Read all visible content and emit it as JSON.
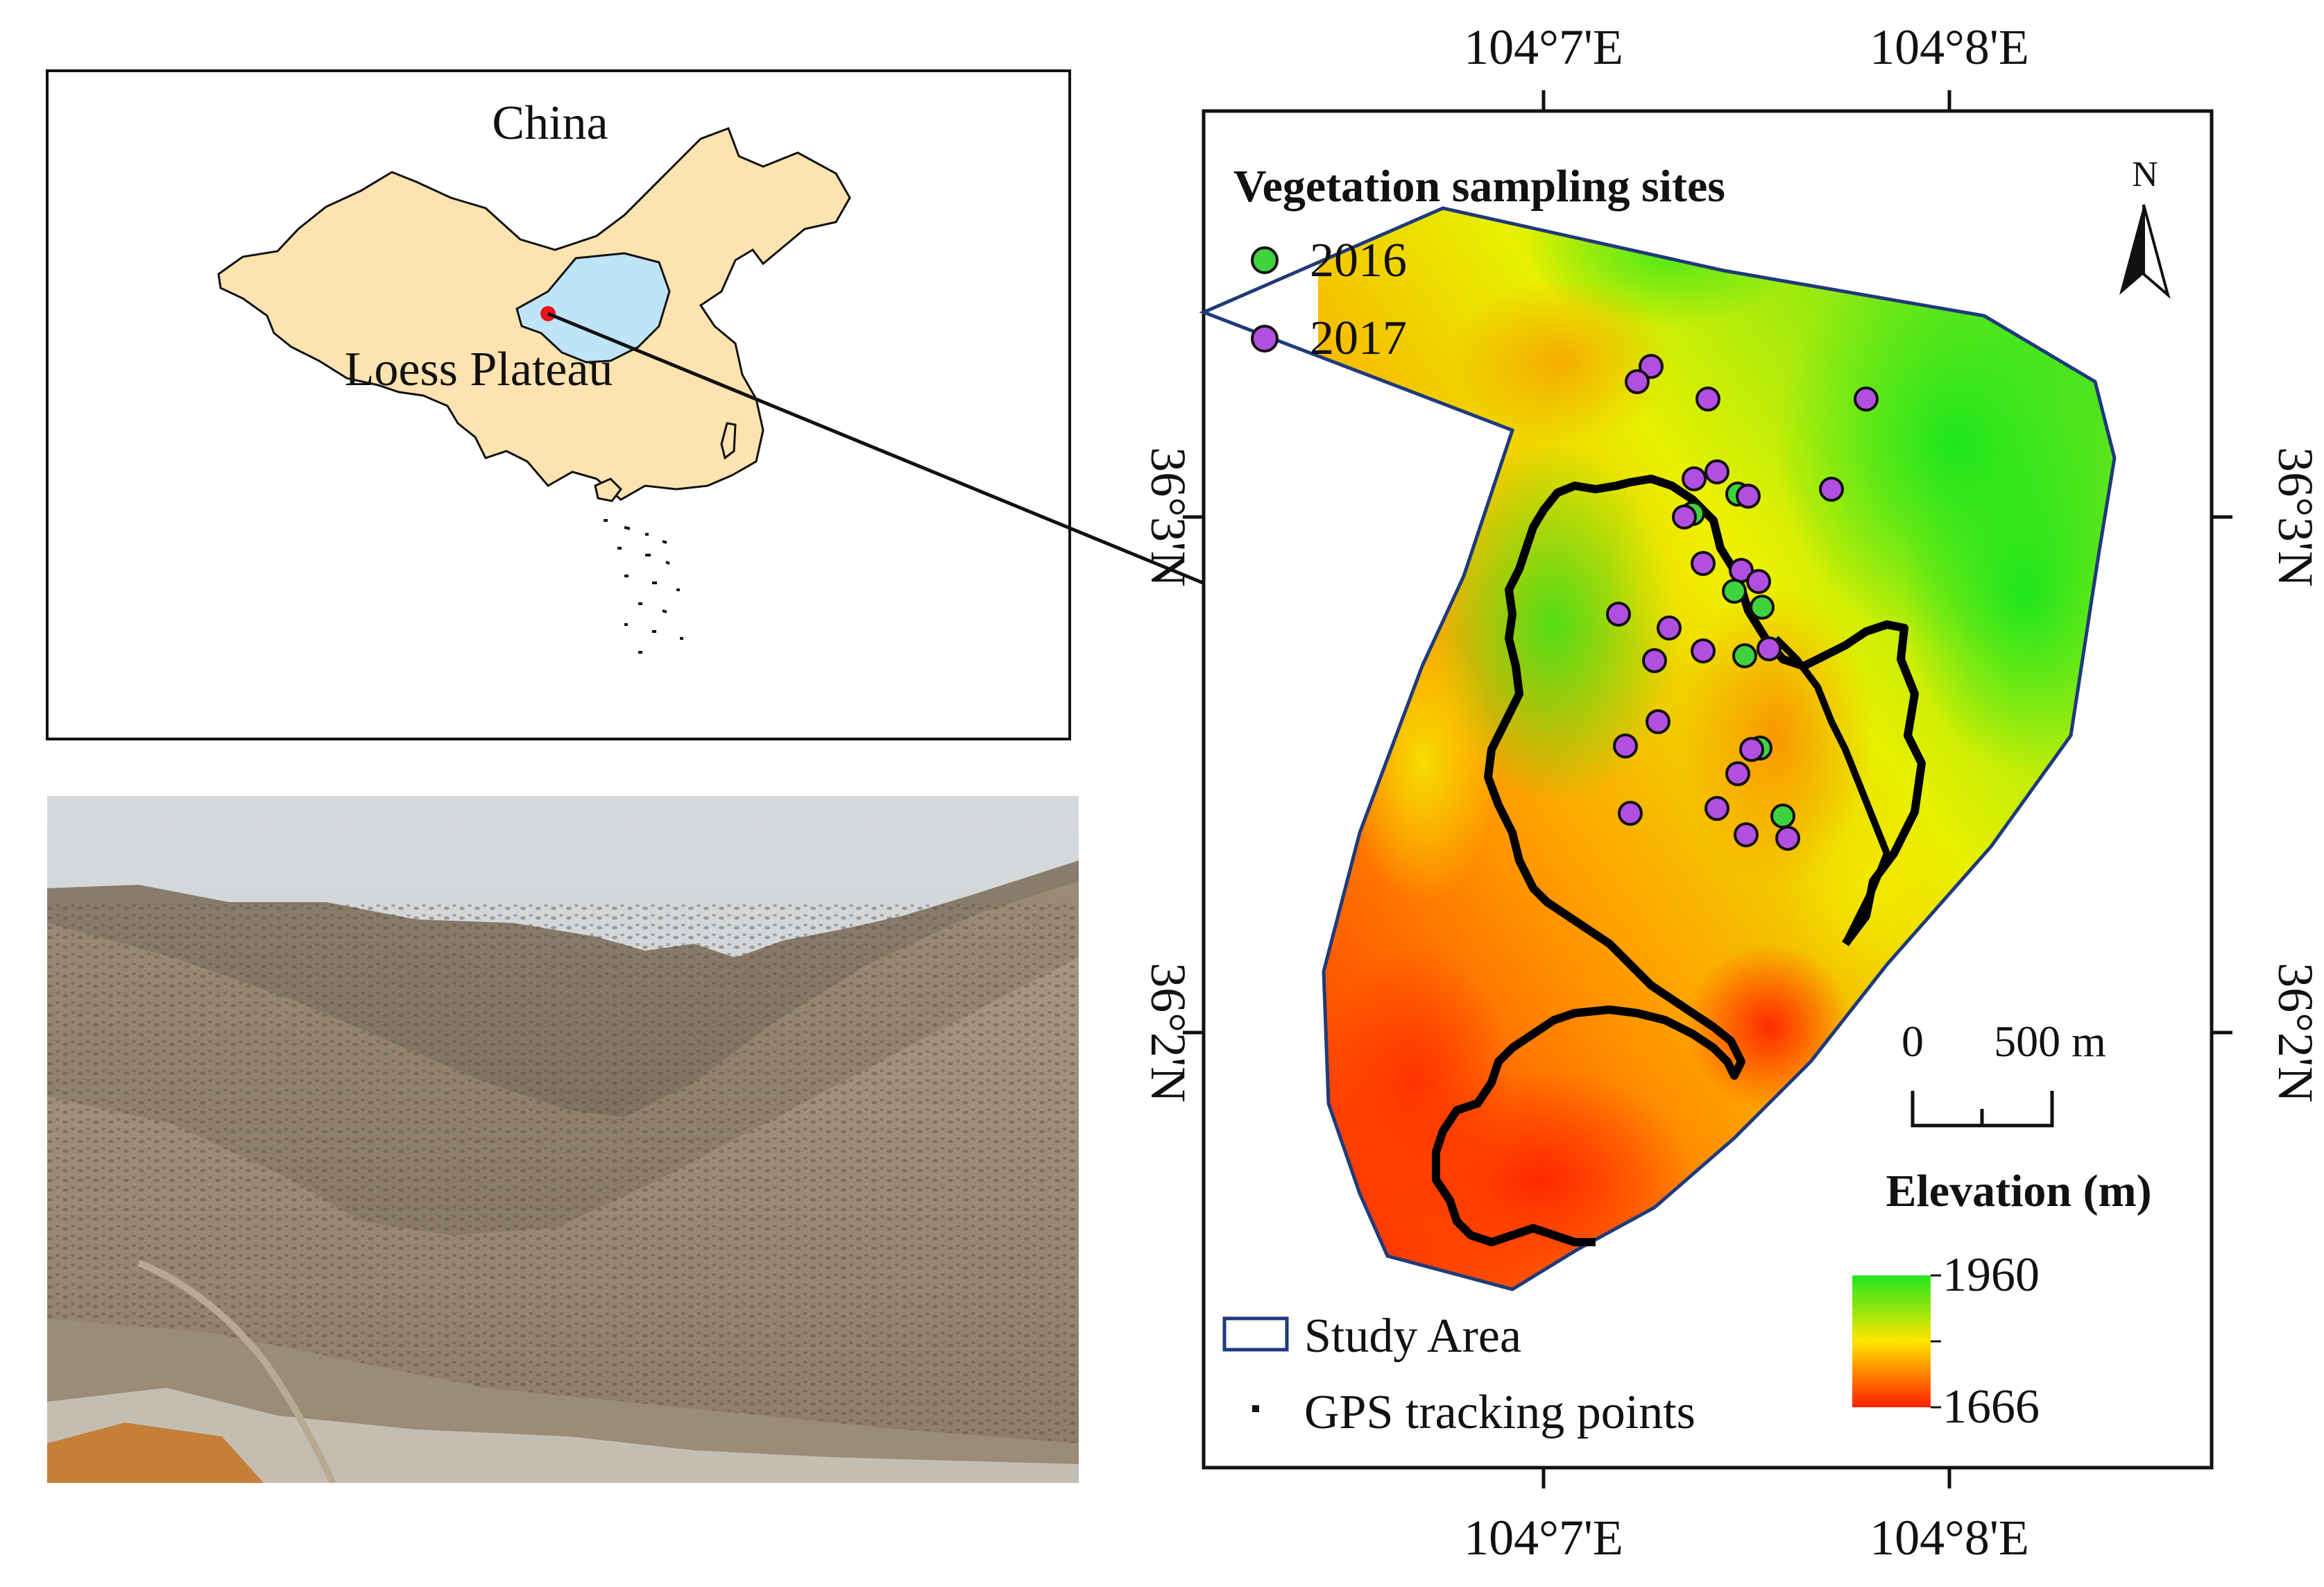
{
  "inset": {
    "country_label": "China",
    "region_label": "Loess Plateau"
  },
  "map": {
    "legend_title": "Vegetation sampling sites",
    "legend_2016": "2016",
    "legend_2017": "2017",
    "legend_2016_color": "#3fd23f",
    "legend_2017_color": "#b34fe0",
    "north_label": "N",
    "lon_labels": [
      "104°7'E",
      "104°8'E"
    ],
    "lat_labels": [
      "36°3'N",
      "36°2'N"
    ],
    "scale_zero": "0",
    "scale_end": "500 m",
    "elevation_title": "Elevation (m)",
    "elevation_max": "1960",
    "elevation_min": "1666",
    "elevation_colors": [
      "#ff1e00",
      "#ffe600",
      "#22e61e"
    ],
    "study_area_label": "Study Area",
    "study_area_color": "#1f3a7a",
    "gps_label": "GPS tracking points"
  },
  "photo": {
    "description_icon": "landscape-photo"
  }
}
